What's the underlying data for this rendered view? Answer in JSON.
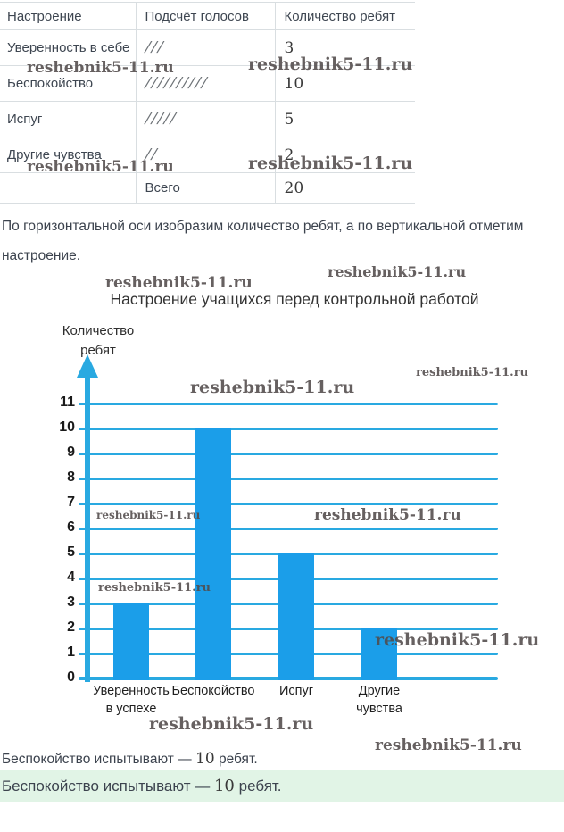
{
  "watermark": {
    "text": "reshebnik5-11.ru"
  },
  "table": {
    "headers": [
      "Настроение",
      "Подсчёт голосов",
      "Количество ребят"
    ],
    "rows": [
      {
        "mood": "Уверенность в себе",
        "tally": "///",
        "count": "3"
      },
      {
        "mood": "Беспокойство",
        "tally": "//////////",
        "count": "10"
      },
      {
        "mood": "Испуг",
        "tally": "/////",
        "count": "5"
      },
      {
        "mood": "Другие чувства",
        "tally": "//",
        "count": "2"
      }
    ],
    "total": {
      "label": "Всего",
      "value": "20"
    }
  },
  "paragraph": "По горизонтальной оси изобразим количество ребят, а по вертикальной отметим настроение.",
  "chart_data": {
    "type": "bar",
    "title": "Настроение учащихся перед контрольной работой",
    "ylabel": "Количество ребят",
    "ylabel_lines": "Количество\nребят",
    "categories": [
      "Уверенность в успехе",
      "Беспокойство",
      "Испуг",
      "Другие чувства"
    ],
    "category_lines": [
      "Уверенность\nв успехе",
      "Беспокойство",
      "Испуг",
      "Другие\nчувства"
    ],
    "values": [
      3,
      10,
      5,
      2
    ],
    "xlabel": "",
    "ylim": [
      0,
      11
    ],
    "ytick_step": 1,
    "grid": true,
    "legend": "none",
    "bar_color": "#1b9ee9",
    "axis_color": "#29a9e1"
  },
  "answer": {
    "prefix": "Беспокойство испытывают — ",
    "number": "10",
    "suffix": " ребят.",
    "highlight_color": "#e1f4e6"
  }
}
